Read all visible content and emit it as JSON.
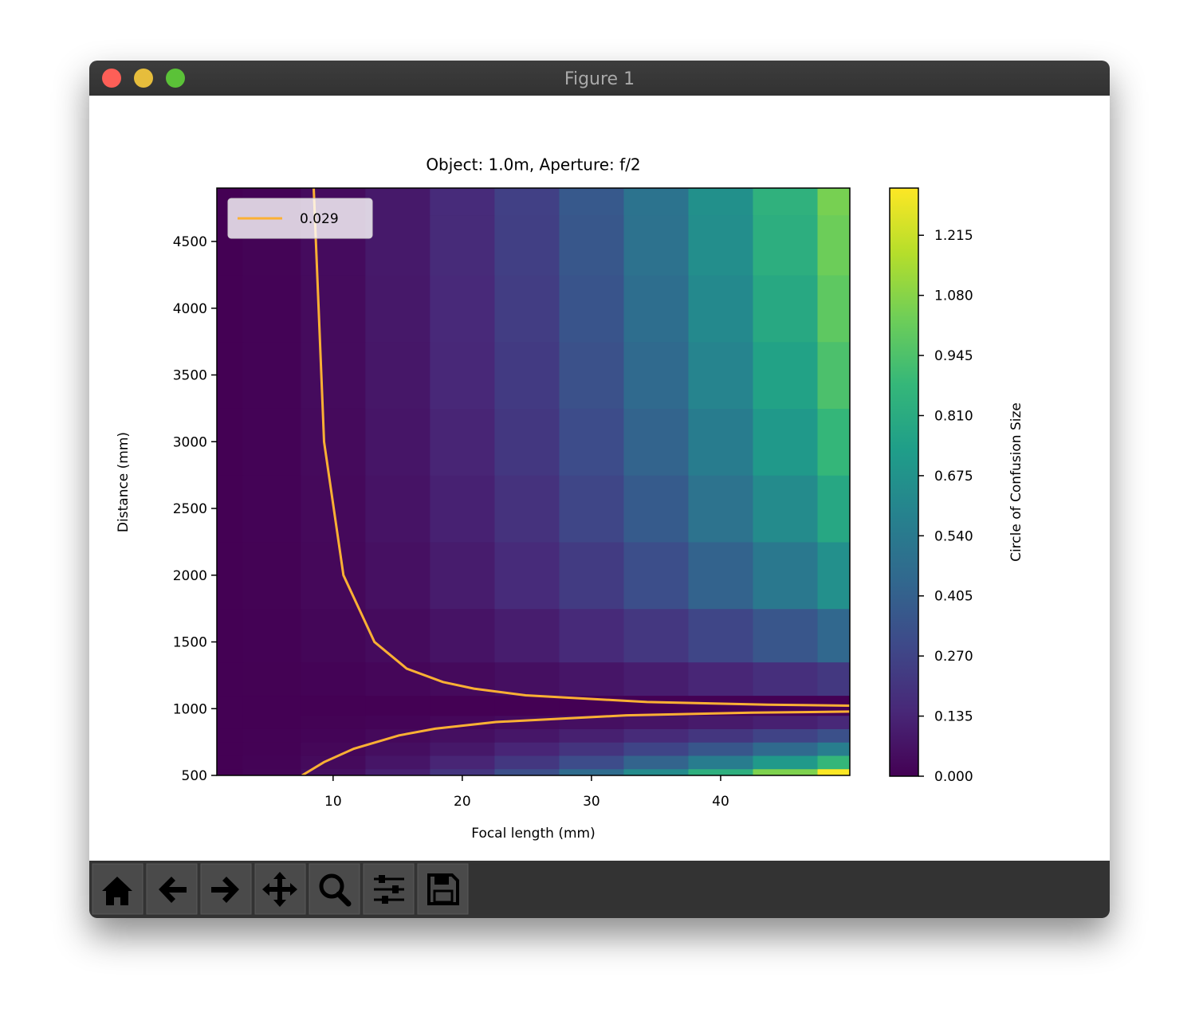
{
  "window": {
    "title": "Figure 1"
  },
  "chart_data": {
    "type": "contourf",
    "title": "Object: 1.0m, Aperture: f/2",
    "x_label": "Focal length (mm)",
    "y_label": "Distance (mm)",
    "xlim": [
      1,
      50
    ],
    "ylim": [
      500,
      4900
    ],
    "xticks": [
      10,
      20,
      30,
      40
    ],
    "yticks": [
      500,
      1000,
      1500,
      2000,
      2500,
      3000,
      3500,
      4000,
      4500
    ],
    "colormap": "viridis",
    "clim": [
      0,
      1.321
    ],
    "colorbar_label": "Circle of Confusion Size",
    "colorbar_ticks": [
      {
        "value": 0,
        "label": "0.000"
      },
      {
        "value": 0.135,
        "label": "0.135"
      },
      {
        "value": 0.27,
        "label": "0.270"
      },
      {
        "value": 0.405,
        "label": "0.405"
      },
      {
        "value": 0.54,
        "label": "0.540"
      },
      {
        "value": 0.675,
        "label": "0.675"
      },
      {
        "value": 0.81,
        "label": "0.810"
      },
      {
        "value": 0.945,
        "label": "0.945"
      },
      {
        "value": 1.08,
        "label": "1.080"
      },
      {
        "value": 1.215,
        "label": "1.215"
      }
    ],
    "grid_x": [
      1,
      5,
      10,
      15,
      20,
      25,
      30,
      35,
      40,
      45,
      50
    ],
    "grid_y": [
      500,
      600,
      700,
      800,
      900,
      1000,
      1200,
      1500,
      2000,
      2500,
      3000,
      3500,
      4000,
      4500,
      4900
    ],
    "z": [
      [
        0.001,
        0.013,
        0.051,
        0.114,
        0.204,
        0.321,
        0.464,
        0.635,
        0.833,
        1.06,
        1.316
      ],
      [
        0.0,
        0.008,
        0.034,
        0.076,
        0.136,
        0.214,
        0.309,
        0.423,
        0.556,
        0.707,
        0.877
      ],
      [
        0.0,
        0.005,
        0.022,
        0.049,
        0.087,
        0.137,
        0.199,
        0.272,
        0.357,
        0.454,
        0.564
      ],
      [
        0.0,
        0.003,
        0.013,
        0.029,
        0.051,
        0.08,
        0.116,
        0.159,
        0.208,
        0.265,
        0.329
      ],
      [
        0.0,
        0.001,
        0.006,
        0.013,
        0.023,
        0.036,
        0.052,
        0.071,
        0.093,
        0.118,
        0.146
      ],
      [
        0,
        0,
        0,
        0,
        0,
        0,
        0,
        0,
        0,
        0,
        0
      ],
      [
        0.0,
        0.002,
        0.008,
        0.019,
        0.034,
        0.053,
        0.077,
        0.106,
        0.139,
        0.177,
        0.219
      ],
      [
        0.0,
        0.004,
        0.017,
        0.038,
        0.068,
        0.107,
        0.155,
        0.212,
        0.278,
        0.353,
        0.439
      ],
      [
        0.0,
        0.006,
        0.025,
        0.057,
        0.102,
        0.16,
        0.232,
        0.317,
        0.417,
        0.53,
        0.658
      ],
      [
        0.0,
        0.008,
        0.03,
        0.069,
        0.122,
        0.192,
        0.278,
        0.381,
        0.5,
        0.636,
        0.789
      ],
      [
        0.0,
        0.008,
        0.034,
        0.076,
        0.136,
        0.214,
        0.309,
        0.423,
        0.556,
        0.707,
        0.877
      ],
      [
        0.0,
        0.009,
        0.036,
        0.082,
        0.146,
        0.229,
        0.331,
        0.453,
        0.595,
        0.757,
        0.94
      ],
      [
        0.0,
        0.009,
        0.038,
        0.086,
        0.153,
        0.24,
        0.348,
        0.476,
        0.625,
        0.795,
        0.987
      ],
      [
        0.0,
        0.01,
        0.039,
        0.089,
        0.159,
        0.249,
        0.361,
        0.494,
        0.648,
        0.825,
        1.023
      ],
      [
        0.0,
        0.01,
        0.04,
        0.091,
        0.162,
        0.255,
        0.369,
        0.505,
        0.663,
        0.844,
        1.047
      ]
    ],
    "series": [
      {
        "name": "0.029",
        "color": "#fbb034",
        "x": [
          8.5,
          9.3,
          10.8,
          13.2,
          15.7,
          18.5,
          20.9,
          24.9,
          34.3,
          43.6,
          50,
          null,
          7.6,
          9.3,
          11.6,
          15.1,
          17.9,
          22.6,
          32.7,
          42.4,
          50
        ],
        "values": [
          4900,
          3000,
          2000,
          1500,
          1300,
          1200,
          1150,
          1100,
          1050,
          1030,
          1022.5,
          null,
          500,
          600,
          700,
          800,
          850,
          900,
          950,
          970,
          978.4
        ]
      }
    ],
    "legend": "upper left"
  }
}
